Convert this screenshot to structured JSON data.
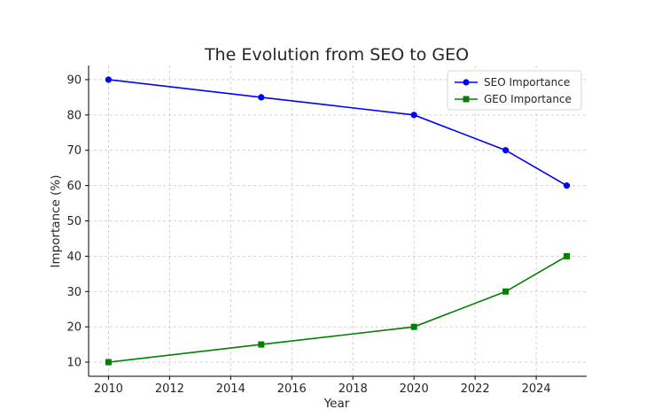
{
  "chart_data": {
    "type": "line",
    "title": "The Evolution from SEO to GEO",
    "xlabel": "Year",
    "ylabel": "Importance (%)",
    "xlim": [
      2009.35,
      2025.65
    ],
    "ylim": [
      6,
      94
    ],
    "xticks": [
      2010,
      2012,
      2014,
      2016,
      2018,
      2020,
      2022,
      2024
    ],
    "yticks": [
      10,
      20,
      30,
      40,
      50,
      60,
      70,
      80,
      90
    ],
    "grid": true,
    "legend_position": "top-right",
    "series": [
      {
        "name": "SEO Importance",
        "marker": "circle",
        "color": "#0000ff",
        "x": [
          2010,
          2015,
          2020,
          2023,
          2025
        ],
        "y": [
          90,
          85,
          80,
          70,
          60
        ]
      },
      {
        "name": "GEO Importance",
        "marker": "square",
        "color": "#008000",
        "x": [
          2010,
          2015,
          2020,
          2023,
          2025
        ],
        "y": [
          10,
          15,
          20,
          30,
          40
        ]
      }
    ]
  }
}
